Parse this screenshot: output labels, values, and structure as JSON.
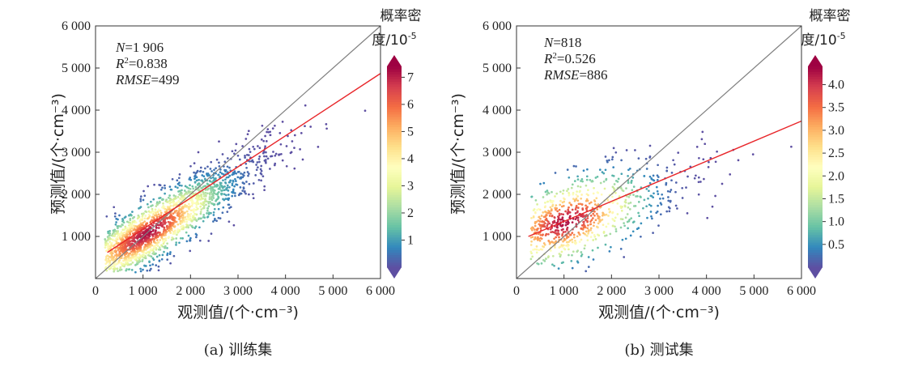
{
  "chart_data": [
    {
      "type": "scatter",
      "panel_caption": "(a) 训练集",
      "xlabel": "观测值/(个·cm⁻³)",
      "ylabel": "预测值/(个·cm⁻³)",
      "xlim": [
        0,
        6000
      ],
      "ylim": [
        0,
        6000
      ],
      "x_ticks": [
        0,
        1000,
        2000,
        3000,
        4000,
        5000,
        6000
      ],
      "x_tick_labels": [
        "0",
        "1 000",
        "2 000",
        "3 000",
        "4 000",
        "5 000",
        "6 000"
      ],
      "y_ticks": [
        1000,
        2000,
        3000,
        4000,
        5000,
        6000
      ],
      "y_tick_labels": [
        "1 000",
        "2 000",
        "3 000",
        "4 000",
        "5 000",
        "6 000"
      ],
      "stats": {
        "n_label": "N",
        "n_value": "=1 906",
        "r2_base": "R",
        "r2_sup": "2",
        "r2_value": "=0.838",
        "rmse_label": "RMSE",
        "rmse_value": "=499"
      },
      "identity_line": {
        "from": [
          0,
          0
        ],
        "to": [
          6000,
          6000
        ],
        "color": "#808080"
      },
      "fit_line": {
        "from": [
          250,
          620
        ],
        "to": [
          6000,
          4870
        ],
        "color": "#e8262a"
      },
      "colorbar": {
        "title_line1": "概率密",
        "title_line2": "度/10",
        "title_sup": "-5",
        "min": 0,
        "max": 7.4,
        "ticks": [
          1,
          2,
          3,
          4,
          5,
          6,
          7
        ],
        "tick_labels": [
          "1",
          "2",
          "3",
          "4",
          "5",
          "6",
          "7"
        ],
        "extend": "both"
      },
      "point_generator": {
        "count": 1906,
        "center_x": 1100,
        "center_y": 1080,
        "spread_parallel": 820,
        "spread_perpendicular": 300,
        "slope": 0.74,
        "x_range": [
          200,
          5900
        ],
        "density_max": 7.2
      }
    },
    {
      "type": "scatter",
      "panel_caption": "(b) 测试集",
      "xlabel": "观测值/(个·cm⁻³)",
      "ylabel": "预测值/(个·cm⁻³)",
      "xlim": [
        0,
        6000
      ],
      "ylim": [
        0,
        6000
      ],
      "x_ticks": [
        0,
        1000,
        2000,
        3000,
        4000,
        5000,
        6000
      ],
      "x_tick_labels": [
        "0",
        "1 000",
        "2 000",
        "3 000",
        "4 000",
        "5 000",
        "6 000"
      ],
      "y_ticks": [
        1000,
        2000,
        3000,
        4000,
        5000,
        6000
      ],
      "y_tick_labels": [
        "1 000",
        "2 000",
        "3 000",
        "4 000",
        "5 000",
        "6 000"
      ],
      "stats": {
        "n_label": "N",
        "n_value": "=818",
        "r2_base": "R",
        "r2_sup": "2",
        "r2_value": "=0.526",
        "rmse_label": "RMSE",
        "rmse_value": "=886"
      },
      "identity_line": {
        "from": [
          0,
          0
        ],
        "to": [
          6000,
          6000
        ],
        "color": "#808080"
      },
      "fit_line": {
        "from": [
          250,
          1000
        ],
        "to": [
          6000,
          3740
        ],
        "color": "#e8262a"
      },
      "colorbar": {
        "title_line1": "概率密",
        "title_line2": "度/10",
        "title_sup": "-5",
        "min": 0,
        "max": 4.4,
        "ticks": [
          0.5,
          1.0,
          1.5,
          2.0,
          2.5,
          3.0,
          3.5,
          4.0
        ],
        "tick_labels": [
          "0.5",
          "1.0",
          "1.5",
          "2.0",
          "2.5",
          "3.0",
          "3.5",
          "4.0"
        ],
        "extend": "both"
      },
      "point_generator": {
        "count": 818,
        "center_x": 1050,
        "center_y": 1350,
        "spread_parallel": 760,
        "spread_perpendicular": 480,
        "slope": 0.47,
        "x_range": [
          300,
          5800
        ],
        "density_max": 4.3
      }
    }
  ],
  "colormap": [
    "#5e4fa2",
    "#3288bd",
    "#66c2a5",
    "#abdda4",
    "#e6f598",
    "#ffffbf",
    "#fee08b",
    "#fdae61",
    "#f46d43",
    "#d53e4f",
    "#9e0142"
  ]
}
